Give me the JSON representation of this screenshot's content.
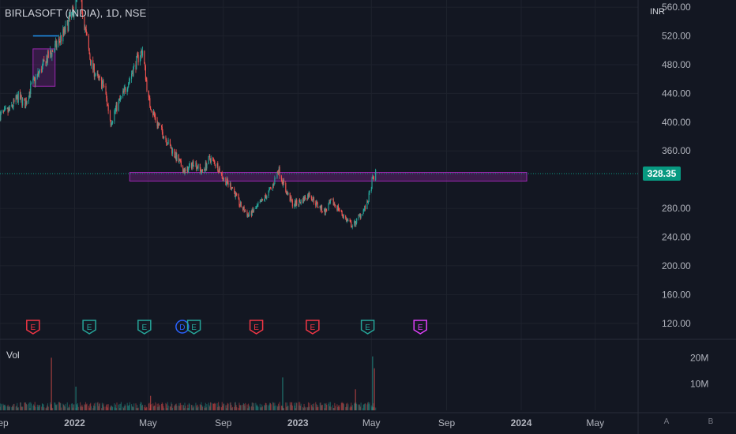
{
  "header": {
    "symbol": "BIRLASOFT (INDIA), 1D, NSE",
    "currency": "INR"
  },
  "volume_pane": {
    "label": "Vol"
  },
  "axis_buttons": {
    "auto": "A",
    "scale": "B"
  },
  "colors": {
    "up": "#26a69a",
    "down": "#ef5350",
    "zone": "#9c27b0",
    "background": "#131722",
    "grid": "#1e222d",
    "axis_text": "#b2b5be",
    "price_badge": "#089981",
    "marker_green": "#26a69a",
    "marker_red": "#f23645",
    "marker_blue": "#2962ff",
    "marker_purple": "#e040fb"
  },
  "chart_data": {
    "type": "candlestick",
    "symbol": "BIRLASOFT (INDIA)",
    "interval": "1D",
    "exchange": "NSE",
    "currency": "INR",
    "last_price": 328.35,
    "last_price_label": "328.35",
    "y_axis": {
      "ticks": [
        "560.00",
        "520.00",
        "480.00",
        "440.00",
        "400.00",
        "360.00",
        "280.00",
        "240.00",
        "200.00",
        "160.00",
        "120.00"
      ],
      "tick_values": [
        560,
        520,
        480,
        440,
        400,
        360,
        280,
        240,
        200,
        160,
        120
      ],
      "range": [
        100,
        570
      ]
    },
    "x_axis": {
      "labels": [
        "Sep",
        "2022",
        "May",
        "Sep",
        "2023",
        "May",
        "Sep",
        "2024",
        "May"
      ],
      "label_dates": [
        "2021-09-01",
        "2022-01-01",
        "2022-05-01",
        "2022-09-01",
        "2023-01-01",
        "2023-05-01",
        "2023-09-01",
        "2024-01-01",
        "2024-05-01"
      ],
      "bold_labels": [
        "2022",
        "2023",
        "2024"
      ],
      "range": [
        "2021-09-01",
        "2024-07-10"
      ]
    },
    "price_path": [
      [
        "2021-09-01",
        410
      ],
      [
        "2021-09-15",
        415
      ],
      [
        "2021-10-01",
        435
      ],
      [
        "2021-10-12",
        425
      ],
      [
        "2021-10-22",
        450
      ],
      [
        "2021-11-05",
        470
      ],
      [
        "2021-11-18",
        490
      ],
      [
        "2021-12-01",
        505
      ],
      [
        "2021-12-15",
        525
      ],
      [
        "2021-12-28",
        550
      ],
      [
        "2022-01-06",
        575
      ],
      [
        "2022-01-12",
        565
      ],
      [
        "2022-01-20",
        520
      ],
      [
        "2022-01-28",
        480
      ],
      [
        "2022-02-08",
        460
      ],
      [
        "2022-02-18",
        450
      ],
      [
        "2022-03-01",
        400
      ],
      [
        "2022-03-10",
        420
      ],
      [
        "2022-03-22",
        440
      ],
      [
        "2022-04-05",
        470
      ],
      [
        "2022-04-15",
        490
      ],
      [
        "2022-04-22",
        500
      ],
      [
        "2022-05-02",
        430
      ],
      [
        "2022-05-15",
        400
      ],
      [
        "2022-05-28",
        380
      ],
      [
        "2022-06-10",
        360
      ],
      [
        "2022-06-20",
        345
      ],
      [
        "2022-07-01",
        330
      ],
      [
        "2022-07-15",
        345
      ],
      [
        "2022-07-28",
        330
      ],
      [
        "2022-08-10",
        350
      ],
      [
        "2022-08-22",
        340
      ],
      [
        "2022-09-02",
        320
      ],
      [
        "2022-09-15",
        310
      ],
      [
        "2022-09-28",
        285
      ],
      [
        "2022-10-12",
        270
      ],
      [
        "2022-10-25",
        280
      ],
      [
        "2022-11-08",
        295
      ],
      [
        "2022-11-20",
        310
      ],
      [
        "2022-11-30",
        335
      ],
      [
        "2022-12-12",
        305
      ],
      [
        "2022-12-24",
        285
      ],
      [
        "2023-01-06",
        290
      ],
      [
        "2023-01-20",
        300
      ],
      [
        "2023-02-01",
        285
      ],
      [
        "2023-02-14",
        275
      ],
      [
        "2023-02-25",
        290
      ],
      [
        "2023-03-08",
        280
      ],
      [
        "2023-03-20",
        265
      ],
      [
        "2023-04-01",
        255
      ],
      [
        "2023-04-12",
        270
      ],
      [
        "2023-04-24",
        285
      ],
      [
        "2023-05-03",
        320
      ],
      [
        "2023-05-08",
        328.35
      ]
    ],
    "volume_axis": {
      "ticks": [
        "20M",
        "10M"
      ],
      "tick_values": [
        20000000,
        10000000
      ]
    },
    "volume_spikes": [
      [
        "2021-11-24",
        20000000
      ],
      [
        "2022-01-03",
        9000000
      ],
      [
        "2022-05-05",
        5500000
      ],
      [
        "2022-12-07",
        12500000
      ],
      [
        "2023-04-05",
        8000000
      ],
      [
        "2023-05-03",
        20500000
      ],
      [
        "2023-05-06",
        16000000
      ]
    ],
    "zones": [
      {
        "type": "horizontal",
        "from": "2022-04-01",
        "to": "2024-01-10",
        "low": 318,
        "high": 330
      },
      {
        "type": "box",
        "from": "2021-10-25",
        "to": "2021-11-30",
        "low": 450,
        "high": 502
      },
      {
        "type": "hline",
        "from": "2021-10-25",
        "to": "2021-12-05",
        "value": 520
      }
    ],
    "event_markers": [
      {
        "date": "2021-10-25",
        "letter": "E",
        "color": "red"
      },
      {
        "date": "2022-01-25",
        "letter": "E",
        "color": "green"
      },
      {
        "date": "2022-04-25",
        "letter": "E",
        "color": "green"
      },
      {
        "date": "2022-06-26",
        "letter": "D",
        "color": "blue"
      },
      {
        "date": "2022-07-15",
        "letter": "E",
        "color": "green"
      },
      {
        "date": "2022-10-25",
        "letter": "E",
        "color": "red"
      },
      {
        "date": "2023-01-25",
        "letter": "E",
        "color": "red"
      },
      {
        "date": "2023-04-25",
        "letter": "E",
        "color": "green"
      },
      {
        "date": "2023-07-20",
        "letter": "E",
        "color": "purple"
      }
    ]
  }
}
